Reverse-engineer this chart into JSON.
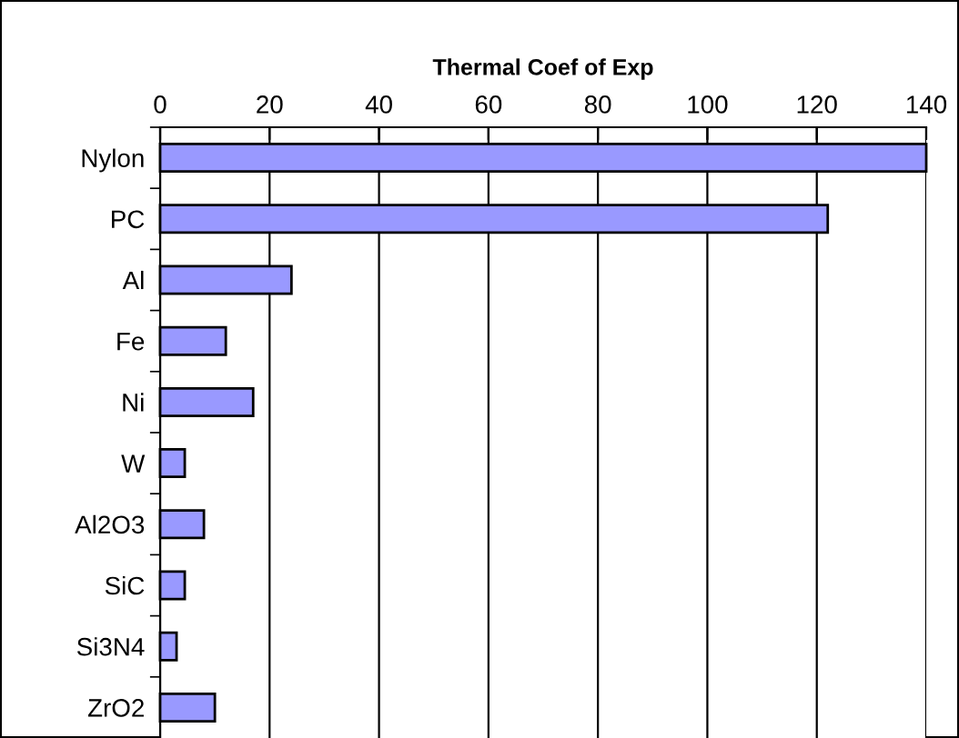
{
  "chart_data": {
    "type": "bar",
    "orientation": "horizontal",
    "title": "Thermal Coef of Exp",
    "categories": [
      "Nylon",
      "PC",
      "Al",
      "Fe",
      "Ni",
      "W",
      "Al2O3",
      "SiC",
      "Si3N4",
      "ZrO2"
    ],
    "values": [
      140,
      122,
      24,
      12,
      17,
      4.5,
      8,
      4.5,
      3,
      10
    ],
    "color": "#9999ff",
    "xlim": [
      0,
      140
    ],
    "xticks": [
      0,
      20,
      40,
      60,
      80,
      100,
      120,
      140
    ],
    "grid": "x"
  }
}
